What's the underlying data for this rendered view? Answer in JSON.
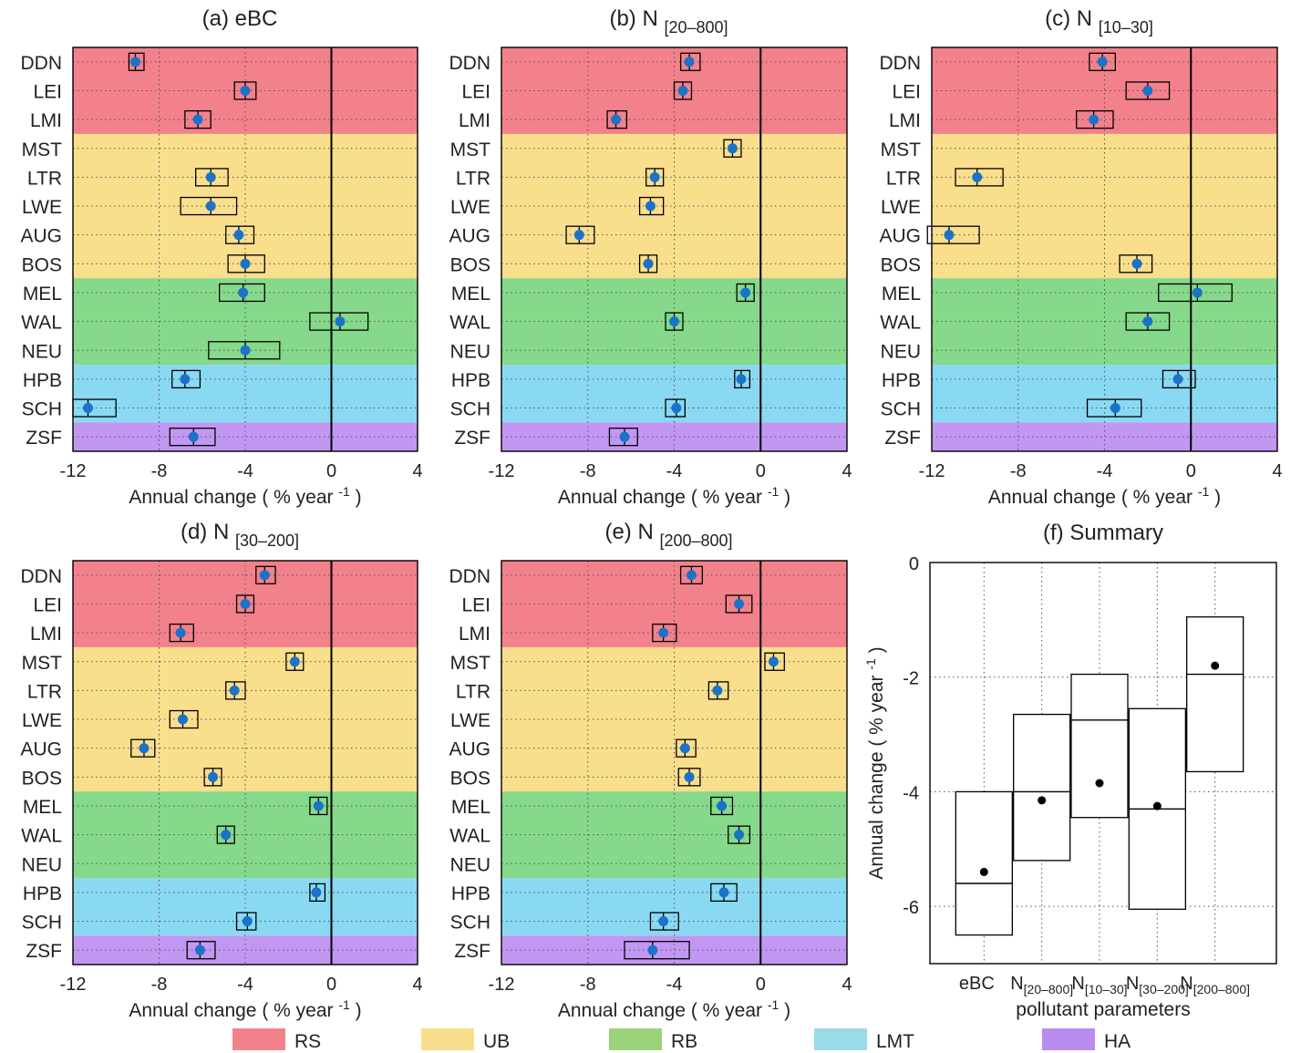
{
  "stations": [
    "DDN",
    "LEI",
    "LMI",
    "MST",
    "LTR",
    "LWE",
    "AUG",
    "BOS",
    "MEL",
    "WAL",
    "NEU",
    "HPB",
    "SCH",
    "ZSF"
  ],
  "categories": [
    {
      "name": "RS",
      "color": "#f2818b",
      "stations": [
        "DDN",
        "LEI",
        "LMI"
      ]
    },
    {
      "name": "UB",
      "color": "#f9de8c",
      "stations": [
        "MST",
        "LTR",
        "LWE",
        "AUG",
        "BOS"
      ]
    },
    {
      "name": "RB",
      "color": "#86d98a",
      "stations": [
        "MEL",
        "WAL",
        "NEU"
      ]
    },
    {
      "name": "LMT",
      "color": "#8ad9f2",
      "stations": [
        "HPB",
        "SCH"
      ]
    },
    {
      "name": "HA",
      "color": "#c297f2",
      "stations": [
        "ZSF"
      ]
    }
  ],
  "legend": [
    {
      "label": "RS",
      "color": "#f2818b"
    },
    {
      "label": "UB",
      "color": "#f9de8c"
    },
    {
      "label": "RB",
      "color": "#9bd37a"
    },
    {
      "label": "LMT",
      "color": "#9adbe8"
    },
    {
      "label": "HA",
      "color": "#b98cf0"
    }
  ],
  "chart_data": [
    {
      "type": "scatter",
      "title": "(a) eBC",
      "title_main": "(a) eBC",
      "title_sub": "",
      "xlabel": "Annual change ( % year",
      "xlabel_sup": "-1",
      "xlabel_end": " )",
      "xlim": [
        -12,
        4
      ],
      "xticks": [
        "-12",
        "-8",
        "-4",
        "0",
        "4"
      ],
      "points": [
        {
          "station": "DDN",
          "value": -9.1,
          "low": -9.4,
          "high": -8.7
        },
        {
          "station": "LEI",
          "value": -4.0,
          "low": -4.5,
          "high": -3.5
        },
        {
          "station": "LMI",
          "value": -6.2,
          "low": -6.8,
          "high": -5.6
        },
        {
          "station": "LTR",
          "value": -5.6,
          "low": -6.3,
          "high": -4.8
        },
        {
          "station": "LWE",
          "value": -5.6,
          "low": -7.0,
          "high": -4.4
        },
        {
          "station": "AUG",
          "value": -4.3,
          "low": -4.9,
          "high": -3.6
        },
        {
          "station": "BOS",
          "value": -4.0,
          "low": -4.8,
          "high": -3.1
        },
        {
          "station": "MEL",
          "value": -4.1,
          "low": -5.2,
          "high": -3.1
        },
        {
          "station": "WAL",
          "value": 0.4,
          "low": -1.0,
          "high": 1.7
        },
        {
          "station": "NEU",
          "value": -4.0,
          "low": -5.7,
          "high": -2.4
        },
        {
          "station": "HPB",
          "value": -6.8,
          "low": -7.4,
          "high": -6.1
        },
        {
          "station": "SCH",
          "value": -11.3,
          "low": -12.0,
          "high": -10.0
        },
        {
          "station": "ZSF",
          "value": -6.4,
          "low": -7.5,
          "high": -5.4
        }
      ]
    },
    {
      "type": "scatter",
      "title": "(b) N [20–800]",
      "title_main": "(b) N",
      "title_sub": "[20–800]",
      "xlabel": "Annual change ( % year",
      "xlabel_sup": "-1",
      "xlabel_end": " )",
      "xlim": [
        -12,
        4
      ],
      "xticks": [
        "-12",
        "-8",
        "-4",
        "0",
        "4"
      ],
      "points": [
        {
          "station": "DDN",
          "value": -3.3,
          "low": -3.7,
          "high": -2.8
        },
        {
          "station": "LEI",
          "value": -3.6,
          "low": -4.0,
          "high": -3.2
        },
        {
          "station": "LMI",
          "value": -6.7,
          "low": -7.1,
          "high": -6.2
        },
        {
          "station": "MST",
          "value": -1.3,
          "low": -1.7,
          "high": -0.9
        },
        {
          "station": "LTR",
          "value": -4.9,
          "low": -5.3,
          "high": -4.5
        },
        {
          "station": "LWE",
          "value": -5.1,
          "low": -5.6,
          "high": -4.5
        },
        {
          "station": "AUG",
          "value": -8.4,
          "low": -9.0,
          "high": -7.7
        },
        {
          "station": "BOS",
          "value": -5.2,
          "low": -5.6,
          "high": -4.8
        },
        {
          "station": "MEL",
          "value": -0.7,
          "low": -1.1,
          "high": -0.3
        },
        {
          "station": "WAL",
          "value": -4.0,
          "low": -4.4,
          "high": -3.6
        },
        {
          "station": "HPB",
          "value": -0.9,
          "low": -1.2,
          "high": -0.5
        },
        {
          "station": "SCH",
          "value": -3.9,
          "low": -4.4,
          "high": -3.5
        },
        {
          "station": "ZSF",
          "value": -6.3,
          "low": -7.0,
          "high": -5.7
        }
      ]
    },
    {
      "type": "scatter",
      "title": "(c) N [10–30]",
      "title_main": "(c) N",
      "title_sub": "[10–30]",
      "xlabel": "Annual change ( % year",
      "xlabel_sup": "-1",
      "xlabel_end": " )",
      "xlim": [
        -12,
        4
      ],
      "xticks": [
        "-12",
        "-8",
        "-4",
        "0",
        "4"
      ],
      "points": [
        {
          "station": "DDN",
          "value": -4.1,
          "low": -4.7,
          "high": -3.5
        },
        {
          "station": "LEI",
          "value": -2.0,
          "low": -3.0,
          "high": -1.0
        },
        {
          "station": "LMI",
          "value": -4.5,
          "low": -5.3,
          "high": -3.6
        },
        {
          "station": "LTR",
          "value": -9.9,
          "low": -10.9,
          "high": -8.7
        },
        {
          "station": "AUG",
          "value": -11.2,
          "low": -12.2,
          "high": -9.8
        },
        {
          "station": "BOS",
          "value": -2.5,
          "low": -3.3,
          "high": -1.8
        },
        {
          "station": "MEL",
          "value": 0.3,
          "low": -1.5,
          "high": 1.9
        },
        {
          "station": "WAL",
          "value": -2.0,
          "low": -3.0,
          "high": -1.0
        },
        {
          "station": "HPB",
          "value": -0.6,
          "low": -1.3,
          "high": 0.2
        },
        {
          "station": "SCH",
          "value": -3.5,
          "low": -4.8,
          "high": -2.3
        }
      ]
    },
    {
      "type": "scatter",
      "title": "(d) N [30–200]",
      "title_main": "(d) N",
      "title_sub": "[30–200]",
      "xlabel": "Annual change ( % year",
      "xlabel_sup": "-1",
      "xlabel_end": " )",
      "xlim": [
        -12,
        4
      ],
      "xticks": [
        "-12",
        "-8",
        "-4",
        "0",
        "4"
      ],
      "points": [
        {
          "station": "DDN",
          "value": -3.1,
          "low": -3.5,
          "high": -2.6
        },
        {
          "station": "LEI",
          "value": -4.0,
          "low": -4.4,
          "high": -3.6
        },
        {
          "station": "LMI",
          "value": -7.0,
          "low": -7.5,
          "high": -6.4
        },
        {
          "station": "MST",
          "value": -1.7,
          "low": -2.1,
          "high": -1.3
        },
        {
          "station": "LTR",
          "value": -4.5,
          "low": -4.9,
          "high": -4.0
        },
        {
          "station": "LWE",
          "value": -6.9,
          "low": -7.5,
          "high": -6.2
        },
        {
          "station": "AUG",
          "value": -8.7,
          "low": -9.3,
          "high": -8.2
        },
        {
          "station": "BOS",
          "value": -5.5,
          "low": -5.9,
          "high": -5.1
        },
        {
          "station": "MEL",
          "value": -0.6,
          "low": -1.0,
          "high": -0.2
        },
        {
          "station": "WAL",
          "value": -4.9,
          "low": -5.3,
          "high": -4.5
        },
        {
          "station": "HPB",
          "value": -0.7,
          "low": -1.0,
          "high": -0.3
        },
        {
          "station": "SCH",
          "value": -3.9,
          "low": -4.4,
          "high": -3.5
        },
        {
          "station": "ZSF",
          "value": -6.1,
          "low": -6.7,
          "high": -5.4
        }
      ]
    },
    {
      "type": "scatter",
      "title": "(e) N [200–800]",
      "title_main": "(e) N",
      "title_sub": "[200–800]",
      "xlabel": "Annual change ( % year",
      "xlabel_sup": "-1",
      "xlabel_end": " )",
      "xlim": [
        -12,
        4
      ],
      "xticks": [
        "-12",
        "-8",
        "-4",
        "0",
        "4"
      ],
      "points": [
        {
          "station": "DDN",
          "value": -3.2,
          "low": -3.7,
          "high": -2.7
        },
        {
          "station": "LEI",
          "value": -1.0,
          "low": -1.6,
          "high": -0.4
        },
        {
          "station": "LMI",
          "value": -4.5,
          "low": -5.0,
          "high": -3.9
        },
        {
          "station": "MST",
          "value": 0.6,
          "low": 0.2,
          "high": 1.1
        },
        {
          "station": "LTR",
          "value": -2.0,
          "low": -2.4,
          "high": -1.5
        },
        {
          "station": "AUG",
          "value": -3.5,
          "low": -3.9,
          "high": -3.0
        },
        {
          "station": "BOS",
          "value": -3.3,
          "low": -3.8,
          "high": -2.8
        },
        {
          "station": "MEL",
          "value": -1.8,
          "low": -2.3,
          "high": -1.3
        },
        {
          "station": "WAL",
          "value": -1.0,
          "low": -1.5,
          "high": -0.5
        },
        {
          "station": "HPB",
          "value": -1.7,
          "low": -2.3,
          "high": -1.1
        },
        {
          "station": "SCH",
          "value": -4.5,
          "low": -5.1,
          "high": -3.8
        },
        {
          "station": "ZSF",
          "value": -5.0,
          "low": -6.3,
          "high": -3.3
        }
      ]
    },
    {
      "type": "box",
      "title": "(f) Summary",
      "xlabel": "pollutant parameters",
      "ylabel": "Annual change ( % year",
      "ylabel_sup": "-1",
      "ylabel_end": " )",
      "ylim": [
        -7,
        0
      ],
      "yticks": [
        "-6",
        "-4",
        "-2",
        "0"
      ],
      "items": [
        {
          "label": "eBC",
          "sub": "",
          "q1": -6.5,
          "median": -5.6,
          "q3": -4.0,
          "mean": -5.4
        },
        {
          "label": "N",
          "sub": "[20–800]",
          "q1": -5.2,
          "median": -4.0,
          "q3": -2.65,
          "mean": -4.15
        },
        {
          "label": "N",
          "sub": "[10–30]",
          "q1": -4.45,
          "median": -2.75,
          "q3": -1.95,
          "mean": -3.85
        },
        {
          "label": "N",
          "sub": "[30–200]",
          "q1": -6.05,
          "median": -4.3,
          "q3": -2.55,
          "mean": -4.25
        },
        {
          "label": "N",
          "sub": "[200–800]",
          "q1": -3.65,
          "median": -1.95,
          "q3": -0.95,
          "mean": -1.8
        }
      ]
    }
  ]
}
